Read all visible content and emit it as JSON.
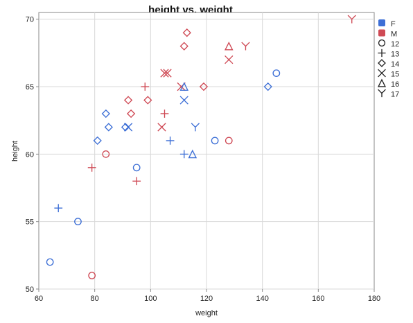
{
  "chart_data": {
    "type": "scatter",
    "title": "height vs. weight",
    "xlabel": "weight",
    "ylabel": "height",
    "xlim": [
      60,
      180
    ],
    "ylim": [
      50,
      70.5
    ],
    "x_ticks": [
      60,
      80,
      100,
      120,
      140,
      160,
      180
    ],
    "y_ticks": [
      50,
      55,
      60,
      65,
      70
    ],
    "grid": true,
    "legend_position": "right",
    "color_legend": [
      {
        "label": "F",
        "color": "#3d6fd6"
      },
      {
        "label": "M",
        "color": "#cf4a55"
      }
    ],
    "marker_legend": [
      {
        "label": "12",
        "marker": "circle"
      },
      {
        "label": "13",
        "marker": "plus"
      },
      {
        "label": "14",
        "marker": "diamond"
      },
      {
        "label": "15",
        "marker": "x"
      },
      {
        "label": "16",
        "marker": "triangle"
      },
      {
        "label": "17",
        "marker": "y"
      }
    ],
    "points": [
      {
        "weight": 64,
        "height": 52,
        "sex": "F",
        "age": "12"
      },
      {
        "weight": 74,
        "height": 55,
        "sex": "F",
        "age": "12"
      },
      {
        "weight": 95,
        "height": 59,
        "sex": "F",
        "age": "12"
      },
      {
        "weight": 123,
        "height": 61,
        "sex": "F",
        "age": "12"
      },
      {
        "weight": 145,
        "height": 66,
        "sex": "F",
        "age": "12"
      },
      {
        "weight": 79,
        "height": 51,
        "sex": "M",
        "age": "12"
      },
      {
        "weight": 84,
        "height": 60,
        "sex": "M",
        "age": "12"
      },
      {
        "weight": 128,
        "height": 61,
        "sex": "M",
        "age": "12"
      },
      {
        "weight": 67,
        "height": 56,
        "sex": "F",
        "age": "13"
      },
      {
        "weight": 107,
        "height": 61,
        "sex": "F",
        "age": "13"
      },
      {
        "weight": 112,
        "height": 60,
        "sex": "F",
        "age": "13"
      },
      {
        "weight": 79,
        "height": 59,
        "sex": "M",
        "age": "13"
      },
      {
        "weight": 95,
        "height": 58,
        "sex": "M",
        "age": "13"
      },
      {
        "weight": 98,
        "height": 65,
        "sex": "M",
        "age": "13"
      },
      {
        "weight": 105,
        "height": 63,
        "sex": "M",
        "age": "13"
      },
      {
        "weight": 81,
        "height": 61,
        "sex": "F",
        "age": "14"
      },
      {
        "weight": 84,
        "height": 63,
        "sex": "F",
        "age": "14"
      },
      {
        "weight": 85,
        "height": 62,
        "sex": "F",
        "age": "14"
      },
      {
        "weight": 91,
        "height": 62,
        "sex": "F",
        "age": "14"
      },
      {
        "weight": 142,
        "height": 65,
        "sex": "F",
        "age": "14"
      },
      {
        "weight": 92,
        "height": 64,
        "sex": "M",
        "age": "14"
      },
      {
        "weight": 93,
        "height": 63,
        "sex": "M",
        "age": "14"
      },
      {
        "weight": 99,
        "height": 64,
        "sex": "M",
        "age": "14"
      },
      {
        "weight": 112,
        "height": 68,
        "sex": "M",
        "age": "14"
      },
      {
        "weight": 113,
        "height": 69,
        "sex": "M",
        "age": "14"
      },
      {
        "weight": 119,
        "height": 65,
        "sex": "M",
        "age": "14"
      },
      {
        "weight": 92,
        "height": 62,
        "sex": "F",
        "age": "15"
      },
      {
        "weight": 112,
        "height": 64,
        "sex": "F",
        "age": "15"
      },
      {
        "weight": 104,
        "height": 62,
        "sex": "M",
        "age": "15"
      },
      {
        "weight": 105,
        "height": 66,
        "sex": "M",
        "age": "15"
      },
      {
        "weight": 106,
        "height": 66,
        "sex": "M",
        "age": "15"
      },
      {
        "weight": 111,
        "height": 65,
        "sex": "M",
        "age": "15"
      },
      {
        "weight": 128,
        "height": 67,
        "sex": "M",
        "age": "15"
      },
      {
        "weight": 112,
        "height": 65,
        "sex": "F",
        "age": "16"
      },
      {
        "weight": 115,
        "height": 60,
        "sex": "F",
        "age": "16"
      },
      {
        "weight": 128,
        "height": 68,
        "sex": "M",
        "age": "16"
      },
      {
        "weight": 116,
        "height": 62,
        "sex": "F",
        "age": "17"
      },
      {
        "weight": 134,
        "height": 68,
        "sex": "M",
        "age": "17"
      },
      {
        "weight": 172,
        "height": 70,
        "sex": "M",
        "age": "17"
      }
    ]
  }
}
